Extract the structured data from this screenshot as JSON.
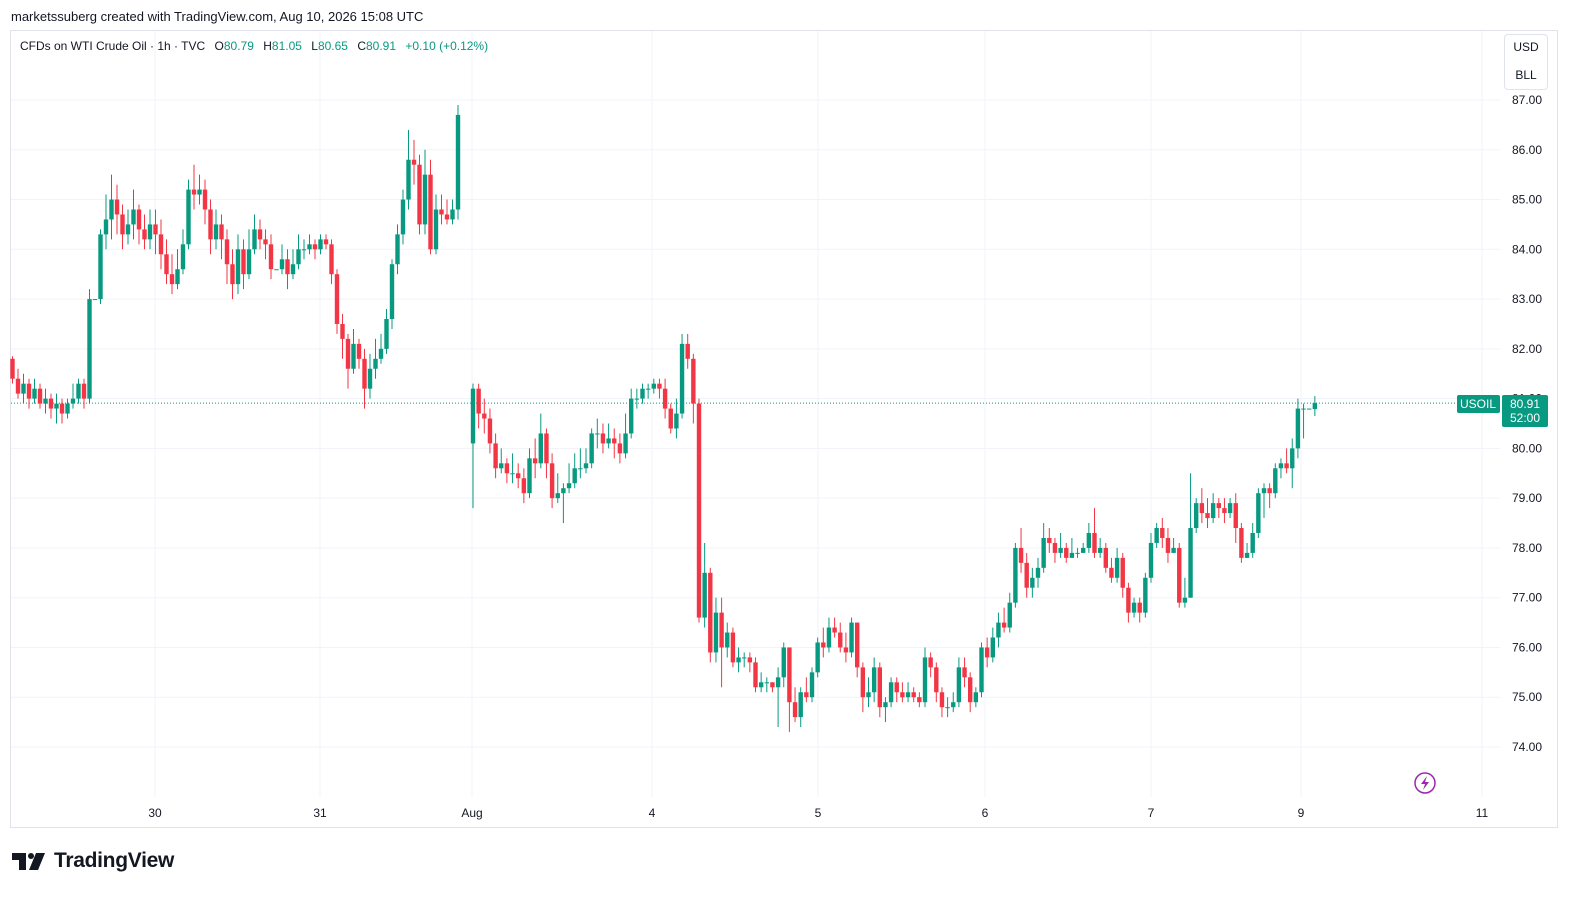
{
  "attribution": "marketssuberg created with TradingView.com, Aug 10, 2026 15:08 UTC",
  "legend": {
    "symbol": "CFDs on WTI Crude Oil · 1h · TVC",
    "o_label": "O",
    "o_value": "80.79",
    "h_label": "H",
    "h_value": "81.05",
    "l_label": "L",
    "l_value": "80.65",
    "c_label": "C",
    "c_value": "80.91",
    "change": "+0.10 (+0.12%)"
  },
  "scale_buttons": {
    "currency": "USD",
    "unit": "BLL"
  },
  "price_tag": {
    "symbol": "USOIL",
    "price": "80.91",
    "countdown": "52:00"
  },
  "logo": {
    "text": "TradingView"
  },
  "colors": {
    "up": "#089981",
    "down": "#f23645",
    "grid": "#f0f3fa",
    "text": "#131722"
  },
  "icons": {
    "replay": "lightning-icon",
    "brand": "tradingview-logo-icon"
  },
  "chart_data": {
    "type": "candlestick",
    "symbol": "USOIL",
    "timeframe": "1h",
    "y_axis": {
      "ticks": [
        "74.00",
        "75.00",
        "76.00",
        "77.00",
        "78.00",
        "79.00",
        "80.00",
        "81.00",
        "82.00",
        "83.00",
        "84.00",
        "85.00",
        "86.00",
        "87.00"
      ],
      "ylim": [
        73.0,
        87.3
      ]
    },
    "x_axis": {
      "ticks": [
        "30",
        "31",
        "Aug",
        "4",
        "5",
        "6",
        "7",
        "9",
        "11"
      ]
    },
    "last_price": 80.91,
    "candles": [
      [
        81.8,
        81.4,
        81.85,
        81.3
      ],
      [
        81.4,
        81.1,
        81.6,
        81.0
      ],
      [
        81.1,
        81.3,
        81.5,
        80.9
      ],
      [
        81.3,
        81.0,
        81.4,
        80.8
      ],
      [
        81.0,
        81.2,
        81.4,
        80.9
      ],
      [
        81.2,
        80.9,
        81.3,
        80.8
      ],
      [
        80.9,
        81.0,
        81.2,
        80.7
      ],
      [
        81.0,
        80.8,
        81.1,
        80.6
      ],
      [
        80.8,
        80.9,
        81.1,
        80.5
      ],
      [
        80.9,
        80.7,
        81.0,
        80.5
      ],
      [
        80.7,
        80.9,
        81.0,
        80.6
      ],
      [
        80.9,
        81.0,
        81.3,
        80.8
      ],
      [
        81.0,
        81.3,
        81.4,
        80.9
      ],
      [
        81.3,
        81.0,
        81.4,
        80.8
      ],
      [
        81.0,
        83.0,
        83.2,
        80.9
      ],
      [
        83.0,
        83.0,
        83.0,
        83.0
      ],
      [
        83.0,
        84.3,
        84.4,
        82.9
      ],
      [
        84.3,
        84.6,
        85.1,
        84.0
      ],
      [
        84.6,
        85.0,
        85.5,
        84.2
      ],
      [
        85.0,
        84.7,
        85.3,
        84.3
      ],
      [
        84.7,
        84.3,
        84.9,
        84.0
      ],
      [
        84.3,
        84.5,
        84.8,
        84.1
      ],
      [
        84.5,
        84.8,
        85.2,
        84.2
      ],
      [
        84.8,
        84.4,
        84.9,
        84.1
      ],
      [
        84.4,
        84.2,
        84.7,
        84.0
      ],
      [
        84.2,
        84.5,
        84.8,
        84.0
      ],
      [
        84.5,
        84.3,
        84.8,
        83.9
      ],
      [
        84.3,
        83.9,
        84.6,
        83.6
      ],
      [
        83.9,
        83.5,
        84.2,
        83.3
      ],
      [
        83.5,
        83.3,
        83.9,
        83.1
      ],
      [
        83.3,
        83.6,
        84.0,
        83.2
      ],
      [
        83.6,
        84.1,
        84.4,
        83.5
      ],
      [
        84.1,
        85.2,
        85.4,
        84.0
      ],
      [
        85.2,
        85.1,
        85.7,
        84.8
      ],
      [
        85.1,
        85.2,
        85.5,
        84.9
      ],
      [
        85.2,
        84.8,
        85.4,
        84.5
      ],
      [
        84.8,
        84.2,
        85.0,
        83.9
      ],
      [
        84.2,
        84.5,
        84.8,
        84.0
      ],
      [
        84.5,
        84.2,
        84.7,
        83.8
      ],
      [
        84.2,
        83.7,
        84.4,
        83.3
      ],
      [
        83.7,
        83.3,
        84.0,
        83.0
      ],
      [
        83.3,
        84.0,
        84.3,
        83.1
      ],
      [
        84.0,
        83.5,
        84.2,
        83.2
      ],
      [
        83.5,
        84.0,
        84.4,
        83.4
      ],
      [
        84.0,
        84.4,
        84.7,
        83.9
      ],
      [
        84.4,
        84.2,
        84.6,
        84.0
      ],
      [
        84.2,
        84.1,
        84.4,
        83.8
      ],
      [
        84.1,
        83.6,
        84.3,
        83.4
      ],
      [
        83.6,
        83.6,
        83.6,
        83.6
      ],
      [
        83.6,
        83.8,
        84.1,
        83.5
      ],
      [
        83.8,
        83.5,
        84.0,
        83.2
      ],
      [
        83.5,
        83.7,
        84.0,
        83.4
      ],
      [
        83.7,
        84.0,
        84.3,
        83.6
      ],
      [
        84.0,
        84.0,
        84.2,
        83.8
      ],
      [
        84.0,
        84.1,
        84.3,
        83.9
      ],
      [
        84.1,
        84.0,
        84.2,
        83.8
      ],
      [
        84.0,
        84.2,
        84.3,
        83.9
      ],
      [
        84.2,
        84.1,
        84.3,
        84.0
      ],
      [
        84.1,
        83.5,
        84.2,
        83.3
      ],
      [
        83.5,
        82.5,
        83.6,
        82.3
      ],
      [
        82.5,
        82.2,
        82.7,
        81.8
      ],
      [
        82.2,
        81.6,
        82.3,
        81.2
      ],
      [
        81.6,
        82.1,
        82.4,
        81.5
      ],
      [
        82.1,
        81.8,
        82.2,
        81.6
      ],
      [
        81.8,
        81.2,
        82.0,
        80.8
      ],
      [
        81.2,
        81.6,
        81.9,
        81.0
      ],
      [
        81.6,
        81.8,
        82.2,
        81.4
      ],
      [
        81.8,
        82.0,
        82.3,
        81.7
      ],
      [
        82.0,
        82.6,
        82.8,
        81.9
      ],
      [
        82.6,
        83.7,
        83.8,
        82.4
      ],
      [
        83.7,
        84.3,
        84.5,
        83.5
      ],
      [
        84.3,
        85.0,
        85.2,
        84.1
      ],
      [
        85.0,
        85.8,
        86.4,
        84.8
      ],
      [
        85.8,
        85.7,
        86.2,
        85.3
      ],
      [
        85.7,
        84.5,
        85.9,
        84.3
      ],
      [
        84.5,
        85.5,
        86.0,
        84.3
      ],
      [
        85.5,
        84.0,
        85.8,
        83.9
      ],
      [
        84.0,
        84.8,
        85.1,
        83.9
      ],
      [
        84.8,
        84.7,
        85.1,
        84.5
      ],
      [
        84.7,
        84.6,
        85.0,
        84.5
      ],
      [
        84.6,
        84.8,
        85.0,
        84.5
      ],
      [
        84.8,
        86.7,
        86.9,
        84.6
      ]
    ],
    "candles_b": [
      [
        80.1,
        81.2,
        81.3,
        78.8
      ],
      [
        81.2,
        80.7,
        81.3,
        80.4
      ],
      [
        80.7,
        80.6,
        81.0,
        80.3
      ],
      [
        80.6,
        80.1,
        80.8,
        79.9
      ],
      [
        80.1,
        79.6,
        80.3,
        79.4
      ],
      [
        79.6,
        79.7,
        80.0,
        79.5
      ],
      [
        79.7,
        79.5,
        79.8,
        79.3
      ],
      [
        79.5,
        79.5,
        79.9,
        79.3
      ],
      [
        79.5,
        79.4,
        79.7,
        79.2
      ],
      [
        79.4,
        79.1,
        79.6,
        78.9
      ],
      [
        79.1,
        79.8,
        80.0,
        79.0
      ],
      [
        79.8,
        79.7,
        80.2,
        79.4
      ],
      [
        79.7,
        80.3,
        80.7,
        79.6
      ],
      [
        80.3,
        79.7,
        80.4,
        79.4
      ],
      [
        79.7,
        79.0,
        79.9,
        78.8
      ],
      [
        79.0,
        79.1,
        79.5,
        78.9
      ],
      [
        79.1,
        79.2,
        79.3,
        78.5
      ],
      [
        79.2,
        79.3,
        79.7,
        79.1
      ],
      [
        79.3,
        79.6,
        79.9,
        79.2
      ],
      [
        79.6,
        79.6,
        80.0,
        79.4
      ],
      [
        79.6,
        79.7,
        80.0,
        79.5
      ],
      [
        79.7,
        80.3,
        80.4,
        79.6
      ],
      [
        80.3,
        80.3,
        80.6,
        80.0
      ],
      [
        80.3,
        80.1,
        80.5,
        79.9
      ],
      [
        80.1,
        80.2,
        80.5,
        80.0
      ],
      [
        80.2,
        80.1,
        80.4,
        79.8
      ],
      [
        80.1,
        79.9,
        80.3,
        79.7
      ],
      [
        79.9,
        80.3,
        80.7,
        79.8
      ],
      [
        80.3,
        81.0,
        81.2,
        80.2
      ],
      [
        81.0,
        81.0,
        81.2,
        80.8
      ],
      [
        81.0,
        81.2,
        81.3,
        80.9
      ],
      [
        81.2,
        81.2,
        81.3,
        81.0
      ],
      [
        81.2,
        81.3,
        81.4,
        81.1
      ],
      [
        81.3,
        81.2,
        81.4,
        81.0
      ],
      [
        81.2,
        80.8,
        81.4,
        80.6
      ],
      [
        80.8,
        80.4,
        80.9,
        80.3
      ],
      [
        80.4,
        80.7,
        81.0,
        80.2
      ],
      [
        80.7,
        82.1,
        82.3,
        80.6
      ],
      [
        82.1,
        81.8,
        82.3,
        81.6
      ],
      [
        81.8,
        80.9,
        81.9,
        80.5
      ],
      [
        80.9,
        76.6,
        81.0,
        76.5
      ],
      [
        76.6,
        77.5,
        78.1,
        76.4
      ],
      [
        77.5,
        75.9,
        77.6,
        75.7
      ],
      [
        75.9,
        76.7,
        77.0,
        75.7
      ],
      [
        76.7,
        76.0,
        77.0,
        75.2
      ],
      [
        76.0,
        76.3,
        76.5,
        75.8
      ],
      [
        76.3,
        75.7,
        76.4,
        75.6
      ],
      [
        75.7,
        75.8,
        76.0,
        75.5
      ],
      [
        75.8,
        75.8,
        75.9,
        75.6
      ],
      [
        75.8,
        75.7,
        75.9,
        75.5
      ],
      [
        75.7,
        75.2,
        75.8,
        75.1
      ],
      [
        75.2,
        75.3,
        75.5,
        75.1
      ],
      [
        75.3,
        75.3,
        75.4,
        75.1
      ],
      [
        75.3,
        75.2,
        75.3,
        75.1
      ],
      [
        75.2,
        75.4,
        75.6,
        74.4
      ],
      [
        75.4,
        76.0,
        76.1,
        75.2
      ],
      [
        76.0,
        74.9,
        76.0,
        74.3
      ],
      [
        74.9,
        74.6,
        75.2,
        74.5
      ],
      [
        74.6,
        75.1,
        75.2,
        74.4
      ],
      [
        75.1,
        75.0,
        75.4,
        74.9
      ],
      [
        75.0,
        75.5,
        75.6,
        74.9
      ],
      [
        75.5,
        76.1,
        76.2,
        75.4
      ],
      [
        76.1,
        76.0,
        76.4,
        75.8
      ],
      [
        76.0,
        76.4,
        76.6,
        75.9
      ],
      [
        76.4,
        76.3,
        76.6,
        76.2
      ],
      [
        76.3,
        76.0,
        76.5,
        75.9
      ],
      [
        76.0,
        75.9,
        76.3,
        75.7
      ],
      [
        75.9,
        76.5,
        76.6,
        75.8
      ],
      [
        76.5,
        75.6,
        76.5,
        75.4
      ],
      [
        75.6,
        75.0,
        75.7,
        74.7
      ],
      [
        75.0,
        75.1,
        75.4,
        74.8
      ],
      [
        75.1,
        75.6,
        75.8,
        74.9
      ],
      [
        75.6,
        74.8,
        75.7,
        74.6
      ],
      [
        74.8,
        74.9,
        75.0,
        74.5
      ],
      [
        74.9,
        75.3,
        75.4,
        74.8
      ],
      [
        75.3,
        75.1,
        75.4,
        74.9
      ],
      [
        75.1,
        75.0,
        75.3,
        74.9
      ],
      [
        75.0,
        75.1,
        75.3,
        74.9
      ],
      [
        75.1,
        75.0,
        75.2,
        74.9
      ],
      [
        75.0,
        74.9,
        75.1,
        74.8
      ],
      [
        74.9,
        75.8,
        76.0,
        74.8
      ],
      [
        75.8,
        75.6,
        75.9,
        75.4
      ],
      [
        75.6,
        75.1,
        75.7,
        74.9
      ],
      [
        75.1,
        74.8,
        75.2,
        74.6
      ],
      [
        74.8,
        74.8,
        75.0,
        74.6
      ],
      [
        74.8,
        74.9,
        75.1,
        74.7
      ],
      [
        74.9,
        75.6,
        75.8,
        74.8
      ],
      [
        75.6,
        75.4,
        75.8,
        75.2
      ],
      [
        75.4,
        74.9,
        75.5,
        74.7
      ],
      [
        74.9,
        75.1,
        75.2,
        74.8
      ],
      [
        75.1,
        76.0,
        76.1,
        75.0
      ],
      [
        76.0,
        75.8,
        76.2,
        75.6
      ],
      [
        75.8,
        76.2,
        76.4,
        75.7
      ],
      [
        76.2,
        76.5,
        76.7,
        76.0
      ],
      [
        76.5,
        76.4,
        76.8,
        76.3
      ],
      [
        76.4,
        76.9,
        77.1,
        76.3
      ],
      [
        76.9,
        78.0,
        78.1,
        76.8
      ],
      [
        78.0,
        77.7,
        78.4,
        77.5
      ],
      [
        77.7,
        77.2,
        77.9,
        77.0
      ],
      [
        77.2,
        77.4,
        77.6,
        77.0
      ],
      [
        77.4,
        77.6,
        77.8,
        77.2
      ],
      [
        77.6,
        78.2,
        78.5,
        77.5
      ],
      [
        78.2,
        78.1,
        78.4,
        77.9
      ],
      [
        78.1,
        77.9,
        78.2,
        77.7
      ],
      [
        77.9,
        78.0,
        78.3,
        77.8
      ],
      [
        78.0,
        77.8,
        78.1,
        77.7
      ],
      [
        77.8,
        77.9,
        78.2,
        77.8
      ],
      [
        77.9,
        77.9,
        78.0,
        77.8
      ],
      [
        77.9,
        78.0,
        78.1,
        77.9
      ],
      [
        78.0,
        78.3,
        78.5,
        77.9
      ],
      [
        78.3,
        77.9,
        78.8,
        77.8
      ],
      [
        77.9,
        78.0,
        78.2,
        77.8
      ],
      [
        78.0,
        77.6,
        78.1,
        77.5
      ],
      [
        77.6,
        77.4,
        77.8,
        77.3
      ],
      [
        77.4,
        77.8,
        78.0,
        77.3
      ],
      [
        77.8,
        77.2,
        77.9,
        77.0
      ],
      [
        77.2,
        76.7,
        77.3,
        76.5
      ],
      [
        76.7,
        76.9,
        77.0,
        76.6
      ],
      [
        76.9,
        76.7,
        77.0,
        76.5
      ],
      [
        76.7,
        77.4,
        77.5,
        76.6
      ],
      [
        77.4,
        78.1,
        78.3,
        77.3
      ],
      [
        78.1,
        78.4,
        78.5,
        78.0
      ],
      [
        78.4,
        78.2,
        78.6,
        78.0
      ],
      [
        78.2,
        77.9,
        78.4,
        77.7
      ],
      [
        77.9,
        78.0,
        78.2,
        77.9
      ],
      [
        78.0,
        76.9,
        78.1,
        76.8
      ],
      [
        76.9,
        77.0,
        77.4,
        76.8
      ],
      [
        77.0,
        78.4,
        79.5,
        77.0
      ],
      [
        78.4,
        78.9,
        79.0,
        78.3
      ],
      [
        78.9,
        78.7,
        79.2,
        78.5
      ],
      [
        78.7,
        78.6,
        79.0,
        78.4
      ],
      [
        78.6,
        78.9,
        79.1,
        78.5
      ],
      [
        78.9,
        78.8,
        79.0,
        78.6
      ],
      [
        78.8,
        78.7,
        79.0,
        78.5
      ],
      [
        78.7,
        78.9,
        79.0,
        78.6
      ],
      [
        78.9,
        78.4,
        79.1,
        78.1
      ],
      [
        78.4,
        77.8,
        78.5,
        77.7
      ],
      [
        77.8,
        77.9,
        78.1,
        77.8
      ],
      [
        77.9,
        78.3,
        78.5,
        77.8
      ],
      [
        78.3,
        79.1,
        79.2,
        78.2
      ],
      [
        79.1,
        79.2,
        79.3,
        78.6
      ],
      [
        79.2,
        79.1,
        79.3,
        78.8
      ],
      [
        79.1,
        79.6,
        79.7,
        79.0
      ],
      [
        79.6,
        79.7,
        79.8,
        79.4
      ],
      [
        79.7,
        79.6,
        80.0,
        79.5
      ],
      [
        79.6,
        80.0,
        80.2,
        79.2
      ],
      [
        80.0,
        80.8,
        81.0,
        79.8
      ],
      [
        80.8,
        80.8,
        80.9,
        80.2
      ],
      [
        80.8,
        80.8,
        80.8,
        80.8
      ],
      [
        80.79,
        80.91,
        81.05,
        80.65
      ]
    ]
  }
}
